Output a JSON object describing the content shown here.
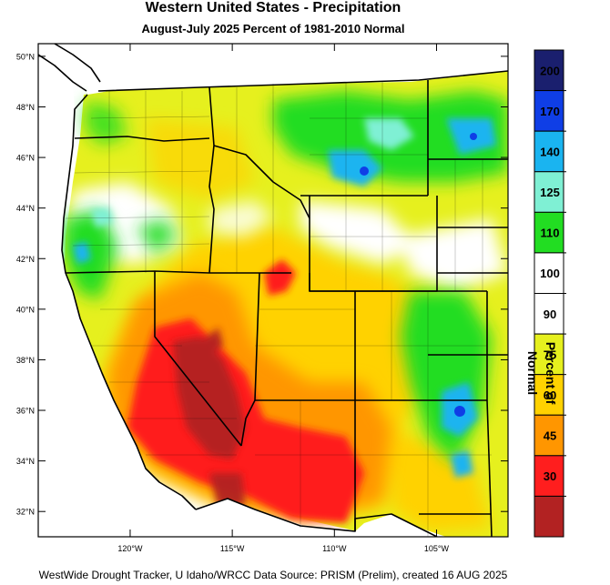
{
  "title": "Western United States - Precipitation",
  "subtitle": "August-July 2025  Percent of 1981-2010 Normal",
  "footer": "WestWide Drought Tracker, U Idaho/WRCC Data Source: PRISM (Prelim), created 16 AUG 2025",
  "map": {
    "lon_range": [
      -124.5,
      -101.5
    ],
    "lat_range": [
      31,
      50.5
    ],
    "lat_ticks": [
      "50°N",
      "48°N",
      "46°N",
      "44°N",
      "42°N",
      "40°N",
      "38°N",
      "36°N",
      "34°N",
      "32°N"
    ],
    "lat_values": [
      50,
      48,
      46,
      44,
      42,
      40,
      38,
      36,
      34,
      32
    ],
    "lon_ticks": [
      "120°W",
      "115°W",
      "110°W",
      "105°W"
    ],
    "lon_values": [
      -120,
      -115,
      -110,
      -105
    ]
  },
  "colorbar": {
    "title": "Percent of Normal",
    "labels": [
      "200",
      "170",
      "140",
      "125",
      "110",
      "100",
      "90",
      "75",
      "60",
      "45",
      "30"
    ],
    "colors": [
      "#1a1f6e",
      "#0f3ee6",
      "#1ab4f0",
      "#7ff0d4",
      "#22dd22",
      "#ffffff",
      "#ffffff",
      "#e6f01e",
      "#ffd200",
      "#ff9600",
      "#ff1e1e",
      "#b22222"
    ]
  }
}
